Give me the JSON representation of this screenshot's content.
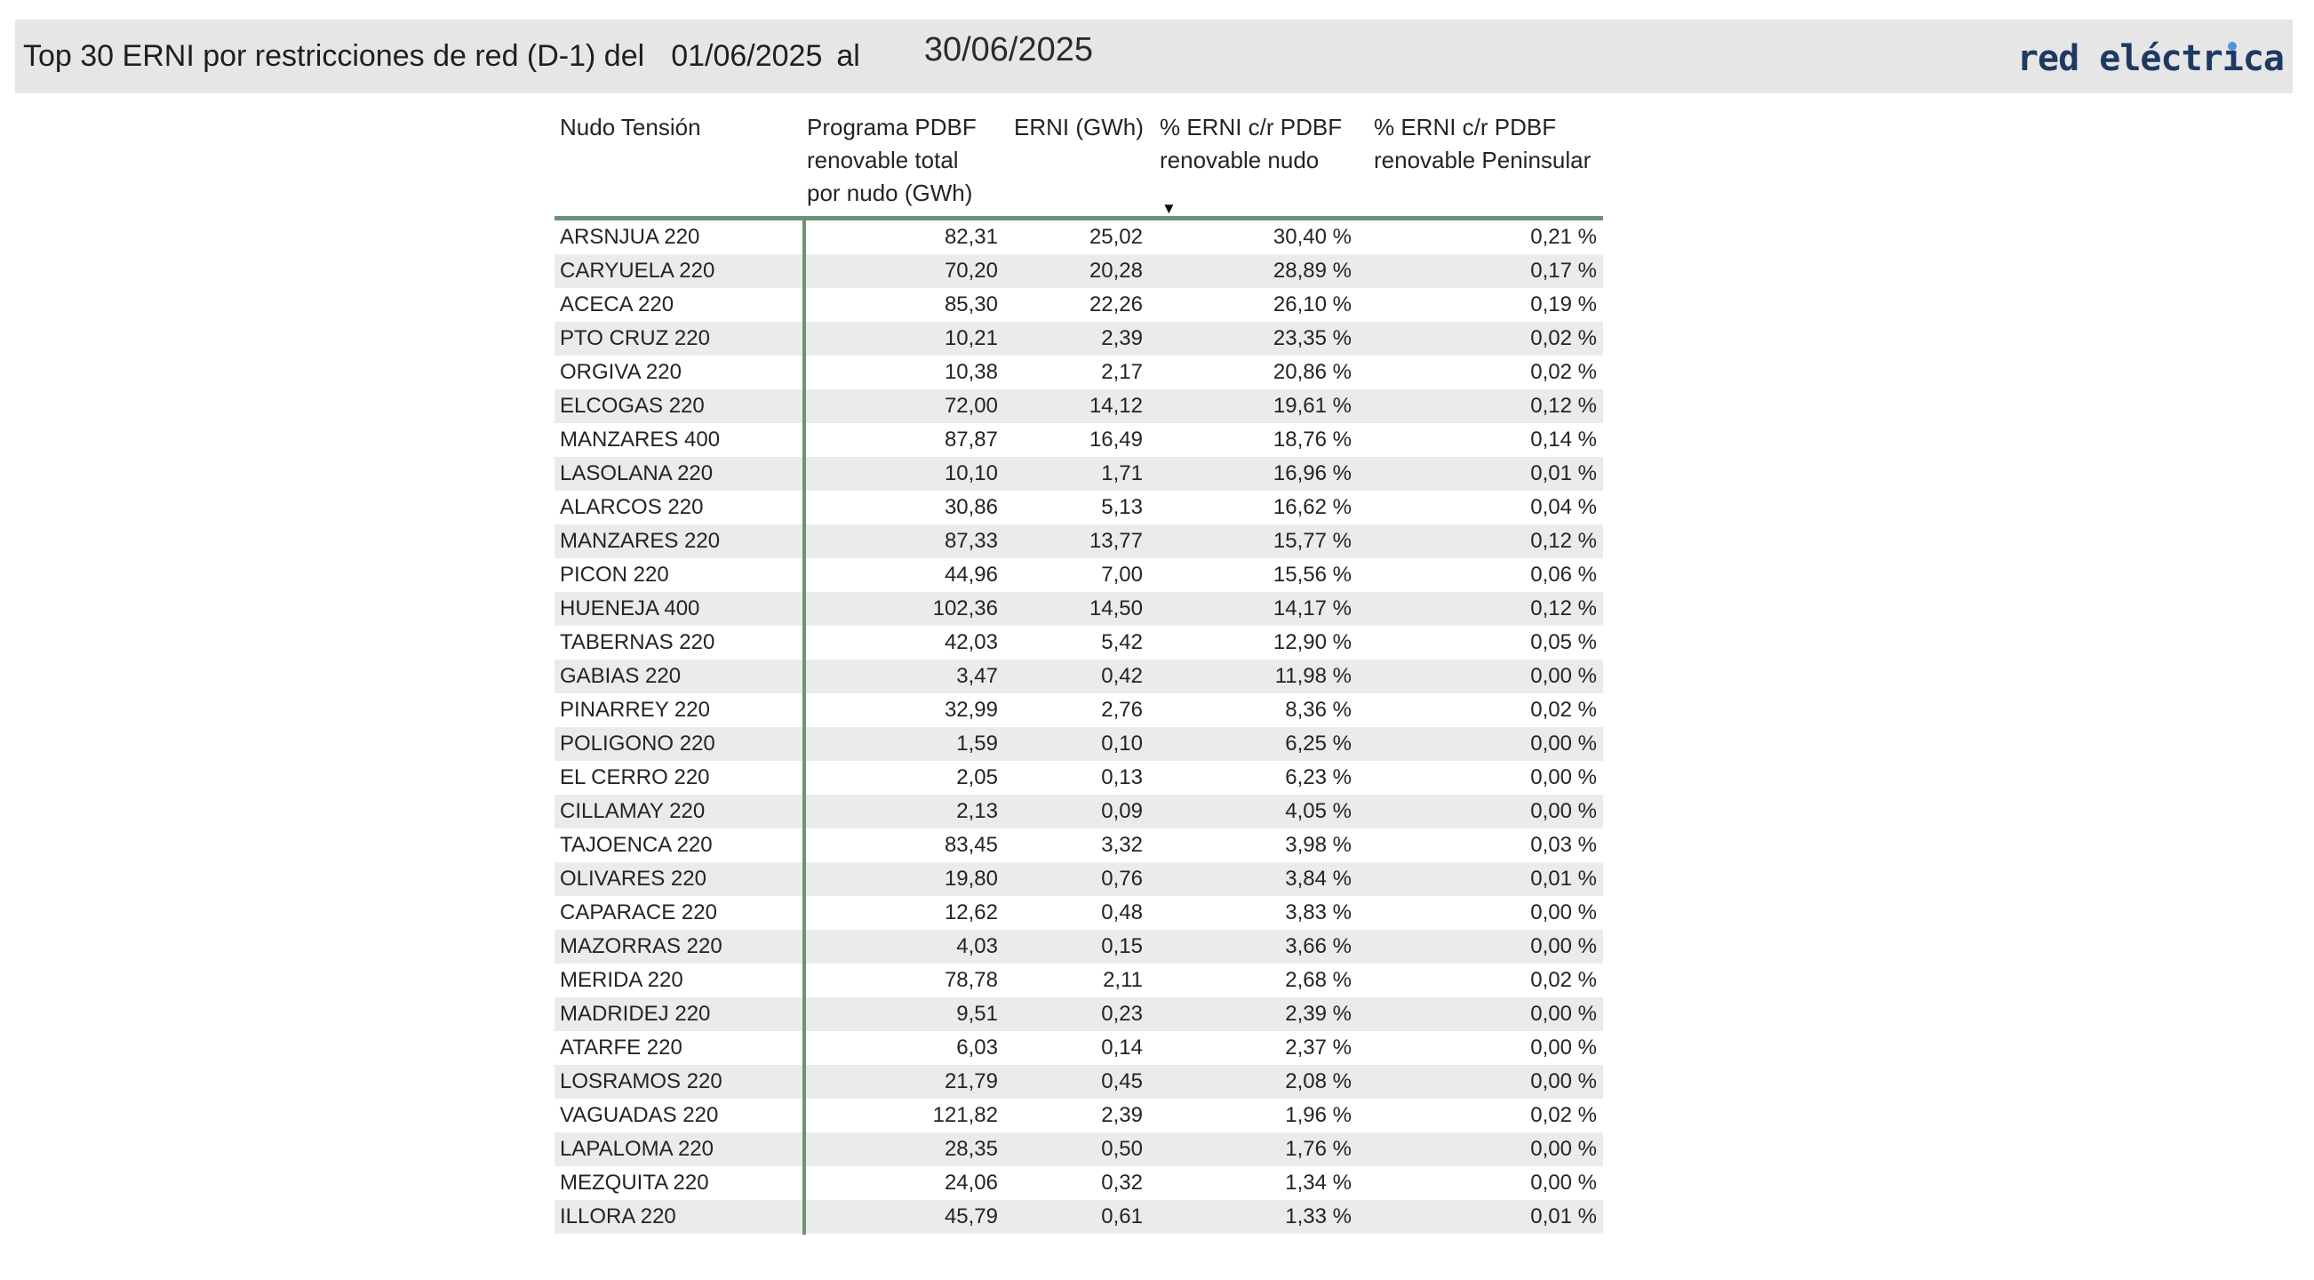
{
  "title": {
    "text": "Top 30 ERNI por restricciones de red (D-1) del",
    "date_from": "01/06/2025",
    "connector": "al",
    "date_to": "30/06/2025"
  },
  "logo": {
    "full_name": "red eléctrica",
    "text_pre": "red eléctr",
    "i_dotless": "ı",
    "text_post": "ca"
  },
  "table": {
    "columns": [
      {
        "label": "Nudo Tensión"
      },
      {
        "label": "Programa PDBF renovable total por nudo (GWh)"
      },
      {
        "label": "ERNI (GWh)"
      },
      {
        "label": "% ERNI c/r PDBF renovable nudo",
        "sorted": "descending"
      },
      {
        "label": "% ERNI c/r PDBF renovable Peninsular"
      }
    ],
    "sort_indicator": "▼",
    "rows": [
      {
        "nudo": "ARSNJUA 220",
        "programa": "82,31",
        "erni": "25,02",
        "pct_nudo": "30,40 %",
        "pct_peninsular": "0,21 %"
      },
      {
        "nudo": "CARYUELA 220",
        "programa": "70,20",
        "erni": "20,28",
        "pct_nudo": "28,89 %",
        "pct_peninsular": "0,17 %"
      },
      {
        "nudo": "ACECA 220",
        "programa": "85,30",
        "erni": "22,26",
        "pct_nudo": "26,10 %",
        "pct_peninsular": "0,19 %"
      },
      {
        "nudo": "PTO CRUZ 220",
        "programa": "10,21",
        "erni": "2,39",
        "pct_nudo": "23,35 %",
        "pct_peninsular": "0,02 %"
      },
      {
        "nudo": "ORGIVA 220",
        "programa": "10,38",
        "erni": "2,17",
        "pct_nudo": "20,86 %",
        "pct_peninsular": "0,02 %"
      },
      {
        "nudo": "ELCOGAS 220",
        "programa": "72,00",
        "erni": "14,12",
        "pct_nudo": "19,61 %",
        "pct_peninsular": "0,12 %"
      },
      {
        "nudo": "MANZARES 400",
        "programa": "87,87",
        "erni": "16,49",
        "pct_nudo": "18,76 %",
        "pct_peninsular": "0,14 %"
      },
      {
        "nudo": "LASOLANA 220",
        "programa": "10,10",
        "erni": "1,71",
        "pct_nudo": "16,96 %",
        "pct_peninsular": "0,01 %"
      },
      {
        "nudo": "ALARCOS 220",
        "programa": "30,86",
        "erni": "5,13",
        "pct_nudo": "16,62 %",
        "pct_peninsular": "0,04 %"
      },
      {
        "nudo": "MANZARES 220",
        "programa": "87,33",
        "erni": "13,77",
        "pct_nudo": "15,77 %",
        "pct_peninsular": "0,12 %"
      },
      {
        "nudo": "PICON 220",
        "programa": "44,96",
        "erni": "7,00",
        "pct_nudo": "15,56 %",
        "pct_peninsular": "0,06 %"
      },
      {
        "nudo": "HUENEJA 400",
        "programa": "102,36",
        "erni": "14,50",
        "pct_nudo": "14,17 %",
        "pct_peninsular": "0,12 %"
      },
      {
        "nudo": "TABERNAS 220",
        "programa": "42,03",
        "erni": "5,42",
        "pct_nudo": "12,90 %",
        "pct_peninsular": "0,05 %"
      },
      {
        "nudo": "GABIAS 220",
        "programa": "3,47",
        "erni": "0,42",
        "pct_nudo": "11,98 %",
        "pct_peninsular": "0,00 %"
      },
      {
        "nudo": "PINARREY 220",
        "programa": "32,99",
        "erni": "2,76",
        "pct_nudo": "8,36 %",
        "pct_peninsular": "0,02 %"
      },
      {
        "nudo": "POLIGONO 220",
        "programa": "1,59",
        "erni": "0,10",
        "pct_nudo": "6,25 %",
        "pct_peninsular": "0,00 %"
      },
      {
        "nudo": "EL CERRO 220",
        "programa": "2,05",
        "erni": "0,13",
        "pct_nudo": "6,23 %",
        "pct_peninsular": "0,00 %"
      },
      {
        "nudo": "CILLAMAY 220",
        "programa": "2,13",
        "erni": "0,09",
        "pct_nudo": "4,05 %",
        "pct_peninsular": "0,00 %"
      },
      {
        "nudo": "TAJOENCA 220",
        "programa": "83,45",
        "erni": "3,32",
        "pct_nudo": "3,98 %",
        "pct_peninsular": "0,03 %"
      },
      {
        "nudo": "OLIVARES 220",
        "programa": "19,80",
        "erni": "0,76",
        "pct_nudo": "3,84 %",
        "pct_peninsular": "0,01 %"
      },
      {
        "nudo": "CAPARACE 220",
        "programa": "12,62",
        "erni": "0,48",
        "pct_nudo": "3,83 %",
        "pct_peninsular": "0,00 %"
      },
      {
        "nudo": "MAZORRAS 220",
        "programa": "4,03",
        "erni": "0,15",
        "pct_nudo": "3,66 %",
        "pct_peninsular": "0,00 %"
      },
      {
        "nudo": "MERIDA 220",
        "programa": "78,78",
        "erni": "2,11",
        "pct_nudo": "2,68 %",
        "pct_peninsular": "0,02 %"
      },
      {
        "nudo": "MADRIDEJ 220",
        "programa": "9,51",
        "erni": "0,23",
        "pct_nudo": "2,39 %",
        "pct_peninsular": "0,00 %"
      },
      {
        "nudo": "ATARFE 220",
        "programa": "6,03",
        "erni": "0,14",
        "pct_nudo": "2,37 %",
        "pct_peninsular": "0,00 %"
      },
      {
        "nudo": "LOSRAMOS 220",
        "programa": "21,79",
        "erni": "0,45",
        "pct_nudo": "2,08 %",
        "pct_peninsular": "0,00 %"
      },
      {
        "nudo": "VAGUADAS 220",
        "programa": "121,82",
        "erni": "2,39",
        "pct_nudo": "1,96 %",
        "pct_peninsular": "0,02 %"
      },
      {
        "nudo": "LAPALOMA 220",
        "programa": "28,35",
        "erni": "0,50",
        "pct_nudo": "1,76 %",
        "pct_peninsular": "0,00 %"
      },
      {
        "nudo": "MEZQUITA 220",
        "programa": "24,06",
        "erni": "0,32",
        "pct_nudo": "1,34 %",
        "pct_peninsular": "0,00 %"
      },
      {
        "nudo": "ILLORA 220",
        "programa": "45,79",
        "erni": "0,61",
        "pct_nudo": "1,33 %",
        "pct_peninsular": "0,01 %"
      }
    ]
  },
  "colors": {
    "titlebar_bg": "#e6e6e6",
    "row_alt_bg": "#ebebeb",
    "accent_green": "#6d9377",
    "logo_navy": "#1e3a63",
    "logo_dot_blue": "#4d95dd",
    "text": "#252423"
  }
}
